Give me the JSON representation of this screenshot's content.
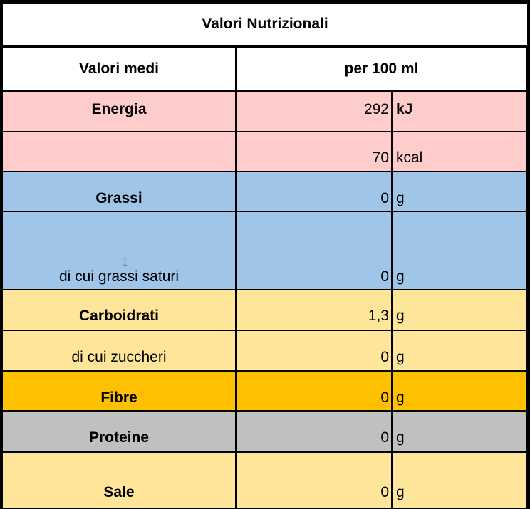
{
  "table": {
    "title": "Valori Nutrizionali",
    "header": {
      "label": "Valori medi",
      "value": "per 100 ml"
    },
    "rows": [
      {
        "label": "Energia",
        "value": "292",
        "unit": "kJ",
        "label_bold": true,
        "unit_bold": true,
        "color": "#FFCCCC"
      },
      {
        "label": "",
        "value": "70",
        "unit": "kcal",
        "label_bold": false,
        "unit_bold": false,
        "color": "#FFCCCC"
      },
      {
        "label": "Grassi",
        "value": "0",
        "unit": "g",
        "label_bold": true,
        "unit_bold": false,
        "color": "#9FC5E8"
      },
      {
        "label": "di cui grassi saturi",
        "value": "0",
        "unit": "g",
        "label_bold": false,
        "unit_bold": false,
        "color": "#9FC5E8"
      },
      {
        "label": "Carboidrati",
        "value": "1,3",
        "unit": "g",
        "label_bold": true,
        "unit_bold": false,
        "color": "#FFE599"
      },
      {
        "label": "di cui zuccheri",
        "value": "0",
        "unit": "g",
        "label_bold": false,
        "unit_bold": false,
        "color": "#FFE599"
      },
      {
        "label": "Fibre",
        "value": "0",
        "unit": "g",
        "label_bold": true,
        "unit_bold": false,
        "color": "#FFC000"
      },
      {
        "label": "Proteine",
        "value": "0",
        "unit": "g",
        "label_bold": true,
        "unit_bold": false,
        "color": "#C0C0C0"
      },
      {
        "label": "Sale",
        "value": "0",
        "unit": "g",
        "label_bold": true,
        "unit_bold": false,
        "color": "#FFE599"
      }
    ]
  },
  "colors": {
    "header_bg": "#FFFFFF",
    "grid": "#000000"
  },
  "cursor_icon": "text-cursor-icon"
}
